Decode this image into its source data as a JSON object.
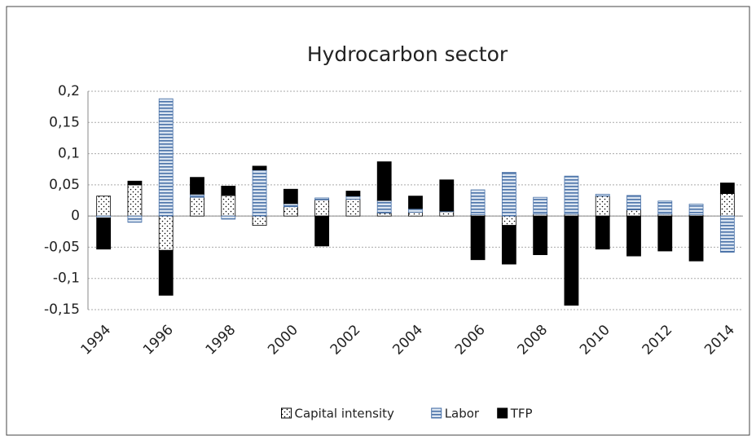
{
  "chart_data": {
    "type": "stacked-bar",
    "title": "Hydrocarbon sector",
    "categories": [
      1994,
      null,
      1996,
      null,
      1998,
      null,
      2000,
      null,
      2002,
      null,
      2004,
      null,
      2006,
      null,
      2008,
      null,
      2010,
      null,
      2012,
      null,
      2014
    ],
    "series": [
      {
        "name": "Capital intensity",
        "color": "#000000",
        "pattern": "dots",
        "values": [
          0.032,
          0.05,
          -0.055,
          0.03,
          0.033,
          -0.015,
          0.015,
          0.026,
          0.027,
          0.005,
          0.006,
          0.007,
          0.002,
          -0.015,
          0.003,
          0.003,
          0.032,
          0.01,
          0.003,
          0.002,
          0.036
        ]
      },
      {
        "name": "Labor",
        "color": "#4a72a8",
        "pattern": "stripes",
        "values": [
          -0.003,
          -0.01,
          0.188,
          0.005,
          -0.005,
          0.074,
          0.005,
          0.003,
          0.005,
          0.02,
          0.006,
          0.001,
          0.04,
          0.07,
          0.027,
          0.061,
          0.003,
          0.023,
          0.021,
          0.017,
          -0.058
        ]
      },
      {
        "name": "TFP",
        "color": "#000000",
        "pattern": "solid",
        "values": [
          -0.05,
          0.006,
          -0.072,
          0.027,
          0.015,
          0.006,
          0.023,
          -0.048,
          0.008,
          0.062,
          0.02,
          0.05,
          -0.07,
          -0.062,
          -0.062,
          -0.143,
          -0.053,
          -0.064,
          -0.056,
          -0.072,
          0.017
        ]
      }
    ],
    "ylim": [
      -0.15,
      0.2
    ],
    "yticks": [
      {
        "value": -0.15,
        "label": "-0,15"
      },
      {
        "value": -0.1,
        "label": "-0,1"
      },
      {
        "value": -0.05,
        "label": "-0,05"
      },
      0,
      {
        "value": 0.05,
        "label": "0,05"
      },
      {
        "value": 0.1,
        "label": "0,1"
      },
      {
        "value": 0.15,
        "label": "0,15"
      },
      {
        "value": 0.2,
        "label": "0,2"
      }
    ],
    "grid": true,
    "legend": "bottom"
  }
}
